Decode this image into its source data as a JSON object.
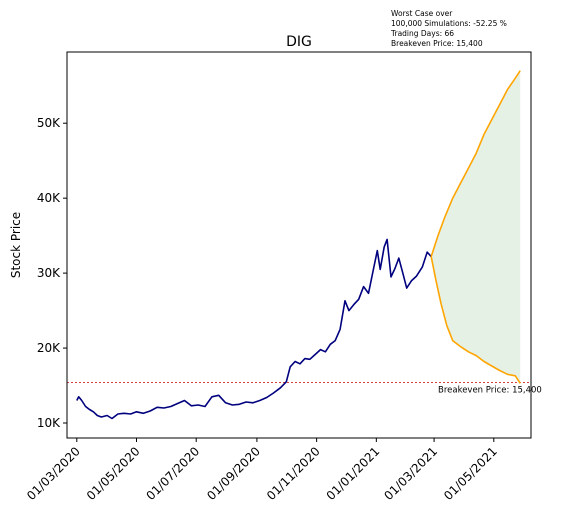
{
  "chart_data": {
    "type": "line",
    "title": "DIG",
    "xlabel": "",
    "ylabel": "Stock Price",
    "x_ticks": [
      "01/03/2020",
      "01/05/2020",
      "01/07/2020",
      "01/09/2020",
      "01/11/2020",
      "01/01/2021",
      "01/03/2021",
      "01/05/2021"
    ],
    "y_ticks": [
      "10K",
      "20K",
      "30K",
      "40K",
      "50K"
    ],
    "ylim": [
      8000,
      59500
    ],
    "xlim": [
      "2020-02-20",
      "2021-06-08"
    ],
    "grid": false,
    "annotation_lines": [
      "Worst Case over",
      "100,000 Simulations: -52.25 %",
      "Trading Days: 66",
      "Breakeven Price: 15,400"
    ],
    "breakeven": {
      "value": 15400,
      "label": "Breakeven Price: 15,400",
      "color": "#cc0000"
    },
    "series": [
      {
        "color": "#00007f",
        "points": [
          [
            "2020-03-01",
            13000
          ],
          [
            "2020-03-03",
            13500
          ],
          [
            "2020-03-06",
            13000
          ],
          [
            "2020-03-10",
            12200
          ],
          [
            "2020-03-14",
            11800
          ],
          [
            "2020-03-18",
            11500
          ],
          [
            "2020-03-22",
            11000
          ],
          [
            "2020-03-26",
            10800
          ],
          [
            "2020-04-01",
            11000
          ],
          [
            "2020-04-06",
            10600
          ],
          [
            "2020-04-12",
            11200
          ],
          [
            "2020-04-18",
            11300
          ],
          [
            "2020-04-25",
            11200
          ],
          [
            "2020-05-01",
            11500
          ],
          [
            "2020-05-08",
            11300
          ],
          [
            "2020-05-15",
            11600
          ],
          [
            "2020-05-22",
            12100
          ],
          [
            "2020-05-29",
            12000
          ],
          [
            "2020-06-05",
            12200
          ],
          [
            "2020-06-12",
            12600
          ],
          [
            "2020-06-19",
            13000
          ],
          [
            "2020-06-26",
            12300
          ],
          [
            "2020-07-03",
            12400
          ],
          [
            "2020-07-10",
            12200
          ],
          [
            "2020-07-17",
            13500
          ],
          [
            "2020-07-24",
            13700
          ],
          [
            "2020-07-31",
            12700
          ],
          [
            "2020-08-07",
            12400
          ],
          [
            "2020-08-14",
            12500
          ],
          [
            "2020-08-21",
            12800
          ],
          [
            "2020-08-28",
            12700
          ],
          [
            "2020-09-04",
            13000
          ],
          [
            "2020-09-11",
            13400
          ],
          [
            "2020-09-18",
            14000
          ],
          [
            "2020-09-25",
            14700
          ],
          [
            "2020-10-01",
            15500
          ],
          [
            "2020-10-05",
            17500
          ],
          [
            "2020-10-10",
            18200
          ],
          [
            "2020-10-15",
            17900
          ],
          [
            "2020-10-20",
            18600
          ],
          [
            "2020-10-25",
            18500
          ],
          [
            "2020-10-31",
            19200
          ],
          [
            "2020-11-05",
            19800
          ],
          [
            "2020-11-10",
            19500
          ],
          [
            "2020-11-15",
            20500
          ],
          [
            "2020-11-20",
            21000
          ],
          [
            "2020-11-25",
            22500
          ],
          [
            "2020-11-30",
            26300
          ],
          [
            "2020-12-04",
            25000
          ],
          [
            "2020-12-09",
            25800
          ],
          [
            "2020-12-14",
            26500
          ],
          [
            "2020-12-19",
            28200
          ],
          [
            "2020-12-24",
            27300
          ],
          [
            "2020-12-29",
            30500
          ],
          [
            "2021-01-02",
            33000
          ],
          [
            "2021-01-05",
            30500
          ],
          [
            "2021-01-09",
            33500
          ],
          [
            "2021-01-12",
            34500
          ],
          [
            "2021-01-16",
            29500
          ],
          [
            "2021-01-20",
            30600
          ],
          [
            "2021-01-24",
            32000
          ],
          [
            "2021-01-28",
            30000
          ],
          [
            "2021-02-01",
            28000
          ],
          [
            "2021-02-06",
            29000
          ],
          [
            "2021-02-11",
            29600
          ],
          [
            "2021-02-17",
            30800
          ],
          [
            "2021-02-22",
            32800
          ],
          [
            "2021-02-26",
            32200
          ]
        ]
      },
      {
        "color": "#ffa500",
        "points": [
          [
            "2021-02-26",
            32200
          ],
          [
            "2021-03-05",
            35000
          ],
          [
            "2021-03-12",
            37500
          ],
          [
            "2021-03-20",
            40000
          ],
          [
            "2021-03-28",
            42000
          ],
          [
            "2021-04-05",
            44000
          ],
          [
            "2021-04-13",
            46000
          ],
          [
            "2021-04-21",
            48500
          ],
          [
            "2021-04-29",
            50500
          ],
          [
            "2021-05-07",
            52500
          ],
          [
            "2021-05-15",
            54500
          ],
          [
            "2021-05-23",
            56000
          ],
          [
            "2021-05-28",
            57000
          ]
        ]
      },
      {
        "color": "#ffa500",
        "points": [
          [
            "2021-02-26",
            32200
          ],
          [
            "2021-03-03",
            29000
          ],
          [
            "2021-03-08",
            26000
          ],
          [
            "2021-03-14",
            23000
          ],
          [
            "2021-03-20",
            21000
          ],
          [
            "2021-03-28",
            20200
          ],
          [
            "2021-04-05",
            19500
          ],
          [
            "2021-04-13",
            19000
          ],
          [
            "2021-04-21",
            18200
          ],
          [
            "2021-04-29",
            17600
          ],
          [
            "2021-05-07",
            17000
          ],
          [
            "2021-05-15",
            16500
          ],
          [
            "2021-05-23",
            16300
          ],
          [
            "2021-05-28",
            15300
          ]
        ]
      }
    ],
    "fill_between": {
      "color": "#2e8b2e",
      "opacity": 0.12
    }
  }
}
